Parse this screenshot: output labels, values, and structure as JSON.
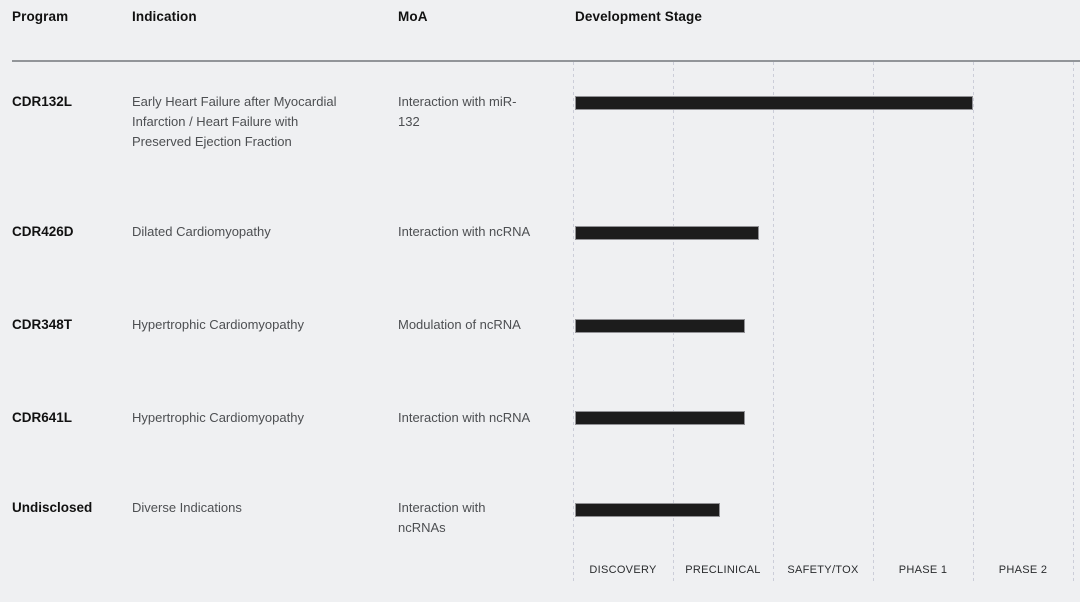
{
  "table": {
    "columns": {
      "program": "Program",
      "indication": "Indication",
      "moa": "MoA",
      "stage": "Development Stage"
    },
    "rows": [
      {
        "program": "CDR132L",
        "indication": "Early Heart Failure after Myocardial\nInfarction / Heart Failure with\nPreserved Ejection Fraction",
        "moa": "Interaction with miR-\n132"
      },
      {
        "program": "CDR426D",
        "indication": "Dilated Cardiomyopathy",
        "moa": "Interaction with ncRNA"
      },
      {
        "program": "CDR348T",
        "indication": "Hypertrophic Cardiomyopathy",
        "moa": "Modulation of ncRNA"
      },
      {
        "program": "CDR641L",
        "indication": "Hypertrophic Cardiomyopathy",
        "moa": "Interaction with ncRNA"
      },
      {
        "program": "Undisclosed",
        "indication": "Diverse Indications",
        "moa": "Interaction with\nncRNAs"
      }
    ]
  },
  "chart_data": {
    "type": "bar",
    "title": "Development Stage",
    "orientation": "horizontal",
    "categories": [
      "CDR132L",
      "CDR426D",
      "CDR348T",
      "CDR641L",
      "Undisclosed"
    ],
    "stages": [
      "DISCOVERY",
      "PRECLINICAL",
      "SAFETY/TOX",
      "PHASE 1",
      "PHASE 2"
    ],
    "series": [
      {
        "name": "CDR132L",
        "end_stage": 4.0
      },
      {
        "name": "CDR426D",
        "end_stage": 1.86
      },
      {
        "name": "CDR348T",
        "end_stage": 1.72
      },
      {
        "name": "CDR641L",
        "end_stage": 1.72
      },
      {
        "name": "Undisclosed",
        "end_stage": 1.47
      }
    ],
    "xlim": [
      0,
      5
    ],
    "grid": "vertical-dashed",
    "legend": "none"
  },
  "colors": {
    "background": "#eff0f2",
    "bar_fill": "#1c1c1c",
    "bar_border": "#919195",
    "gridline": "#cbcdd8",
    "header_rule": "#929599",
    "heading_text": "#111111",
    "body_text": "#4d4f52",
    "stage_label_text": "#2a2c2e"
  }
}
